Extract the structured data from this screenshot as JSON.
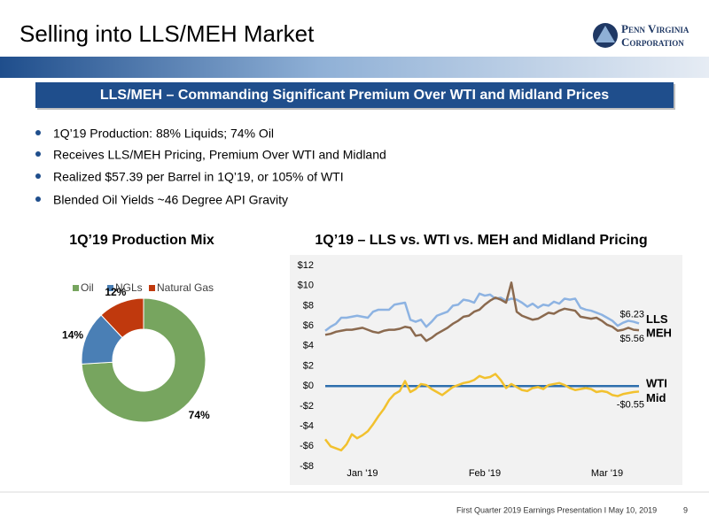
{
  "header": {
    "title": "Selling into LLS/MEH Market",
    "logo": [
      "Penn Virginia",
      "Corporation"
    ]
  },
  "banner": "LLS/MEH – Commanding Significant Premium Over WTI and Midland Prices",
  "bullets": [
    "1Q’19 Production: 88% Liquids; 74% Oil",
    "Receives LLS/MEH Pricing, Premium Over WTI and Midland",
    "Realized $57.39 per Barrel in 1Q’19, or 105% of WTI",
    "Blended Oil Yields ~46 Degree API Gravity"
  ],
  "chart_data": [
    {
      "type": "pie",
      "title": "1Q’19 Production Mix",
      "donut": true,
      "categories": [
        "Oil",
        "NGLs",
        "Natural Gas"
      ],
      "values": [
        74,
        14,
        12
      ],
      "value_labels": [
        "74%",
        "14%",
        "12%"
      ],
      "colors": [
        "#77a55f",
        "#4a7fb5",
        "#c0390d"
      ],
      "legend": "top"
    },
    {
      "type": "line",
      "title": "1Q’19 – LLS vs. WTI vs. MEH and Midland Pricing",
      "categories": [
        null,
        null,
        null,
        null,
        null,
        null,
        null,
        "Jan '19",
        null,
        null,
        null,
        null,
        null,
        null,
        null,
        null,
        null,
        null,
        null,
        null,
        null,
        null,
        null,
        null,
        null,
        null,
        null,
        null,
        null,
        null,
        "Feb '19",
        null,
        null,
        null,
        null,
        null,
        null,
        null,
        null,
        null,
        null,
        null,
        null,
        null,
        null,
        null,
        null,
        null,
        null,
        null,
        null,
        null,
        null,
        "Mar '19",
        null,
        null,
        null,
        null,
        null,
        null
      ],
      "ylim": [
        -8,
        12
      ],
      "yticks": [
        {
          "value": -8,
          "label": "-$8"
        },
        {
          "value": -6,
          "label": "-$6"
        },
        {
          "value": -4,
          "label": "-$4"
        },
        {
          "value": -2,
          "label": "-$2"
        },
        {
          "value": 0,
          "label": "$0"
        },
        {
          "value": 2,
          "label": "$2"
        },
        {
          "value": 4,
          "label": "$4"
        },
        {
          "value": 6,
          "label": "$6"
        },
        {
          "value": 8,
          "label": "$8"
        },
        {
          "value": 10,
          "label": "$10"
        },
        {
          "value": 12,
          "label": "$12"
        }
      ],
      "series": [
        {
          "name": "LLS",
          "color": "#8db3e2",
          "values": [
            5.5,
            5.9,
            6.2,
            6.8,
            6.8,
            6.9,
            7.0,
            6.9,
            6.8,
            7.4,
            7.6,
            7.6,
            7.6,
            8.1,
            8.2,
            8.3,
            6.6,
            6.4,
            6.6,
            5.9,
            6.4,
            7.0,
            7.2,
            7.4,
            8.0,
            8.1,
            8.6,
            8.5,
            8.3,
            9.2,
            9.0,
            9.1,
            8.7,
            8.8,
            8.5,
            8.7,
            8.6,
            8.3,
            7.9,
            8.2,
            7.8,
            8.1,
            8.0,
            8.4,
            8.2,
            8.7,
            8.6,
            8.7,
            7.8,
            7.6,
            7.5,
            7.3,
            7.1,
            6.8,
            6.5,
            6.0,
            6.3,
            6.5,
            6.4,
            6.23
          ],
          "value_labels": [
            null,
            null,
            null,
            null,
            null,
            null,
            null,
            null,
            null,
            null,
            null,
            null,
            null,
            null,
            null,
            null,
            null,
            null,
            null,
            null,
            null,
            null,
            null,
            null,
            null,
            null,
            null,
            null,
            null,
            null,
            null,
            null,
            null,
            null,
            null,
            null,
            null,
            null,
            null,
            null,
            null,
            null,
            null,
            null,
            null,
            null,
            null,
            null,
            null,
            null,
            null,
            null,
            null,
            null,
            null,
            null,
            null,
            null,
            null,
            "$6.23"
          ]
        },
        {
          "name": "MEH",
          "color": "#8b6a4f",
          "values": [
            5.1,
            5.2,
            5.4,
            5.5,
            5.6,
            5.6,
            5.7,
            5.8,
            5.6,
            5.4,
            5.3,
            5.5,
            5.6,
            5.6,
            5.7,
            5.9,
            5.8,
            5.0,
            5.1,
            4.5,
            4.8,
            5.2,
            5.5,
            5.8,
            6.2,
            6.5,
            6.9,
            7.0,
            7.4,
            7.6,
            8.1,
            8.5,
            8.8,
            8.6,
            8.3,
            10.3,
            7.4,
            7.0,
            6.8,
            6.6,
            6.7,
            7.0,
            7.3,
            7.2,
            7.5,
            7.7,
            7.6,
            7.5,
            6.9,
            6.8,
            6.7,
            6.8,
            6.5,
            6.1,
            5.9,
            5.5,
            5.6,
            5.8,
            5.6,
            5.56
          ],
          "value_labels": [
            null,
            null,
            null,
            null,
            null,
            null,
            null,
            null,
            null,
            null,
            null,
            null,
            null,
            null,
            null,
            null,
            null,
            null,
            null,
            null,
            null,
            null,
            null,
            null,
            null,
            null,
            null,
            null,
            null,
            null,
            null,
            null,
            null,
            null,
            null,
            null,
            null,
            null,
            null,
            null,
            null,
            null,
            null,
            null,
            null,
            null,
            null,
            null,
            null,
            null,
            null,
            null,
            null,
            null,
            null,
            null,
            null,
            null,
            null,
            "$5.56"
          ]
        },
        {
          "name": "WTI",
          "color": "#2e6fad",
          "values": [
            0,
            0,
            0,
            0,
            0,
            0,
            0,
            0,
            0,
            0,
            0,
            0,
            0,
            0,
            0,
            0,
            0,
            0,
            0,
            0,
            0,
            0,
            0,
            0,
            0,
            0,
            0,
            0,
            0,
            0,
            0,
            0,
            0,
            0,
            0,
            0,
            0,
            0,
            0,
            0,
            0,
            0,
            0,
            0,
            0,
            0,
            0,
            0,
            0,
            0,
            0,
            0,
            0,
            0,
            0,
            0,
            0,
            0,
            0,
            0
          ]
        },
        {
          "name": "Mid",
          "color": "#f2c12e",
          "values": [
            -5.3,
            -6.0,
            -6.2,
            -6.4,
            -5.8,
            -4.8,
            -5.2,
            -4.9,
            -4.5,
            -3.8,
            -3.0,
            -2.3,
            -1.4,
            -0.8,
            -0.5,
            0.5,
            -0.6,
            -0.3,
            0.2,
            0.1,
            -0.3,
            -0.6,
            -0.9,
            -0.5,
            -0.1,
            0.1,
            0.3,
            0.4,
            0.6,
            1.0,
            0.8,
            0.9,
            1.2,
            0.6,
            -0.2,
            0.2,
            -0.1,
            -0.4,
            -0.5,
            -0.2,
            -0.1,
            -0.3,
            0.1,
            0.2,
            0.3,
            0.1,
            -0.2,
            -0.4,
            -0.3,
            -0.2,
            -0.3,
            -0.6,
            -0.5,
            -0.6,
            -0.9,
            -1.0,
            -0.8,
            -0.7,
            -0.6,
            -0.55
          ],
          "value_labels": [
            null,
            null,
            null,
            null,
            null,
            null,
            null,
            null,
            null,
            null,
            null,
            null,
            null,
            null,
            null,
            null,
            null,
            null,
            null,
            null,
            null,
            null,
            null,
            null,
            null,
            null,
            null,
            null,
            null,
            null,
            null,
            null,
            null,
            null,
            null,
            null,
            null,
            null,
            null,
            null,
            null,
            null,
            null,
            null,
            null,
            null,
            null,
            null,
            null,
            null,
            null,
            null,
            null,
            null,
            null,
            null,
            null,
            null,
            null,
            "-$0.55"
          ]
        }
      ]
    }
  ],
  "footer": {
    "text": "First Quarter 2019 Earnings Presentation I May 10, 2019",
    "page": "9"
  }
}
